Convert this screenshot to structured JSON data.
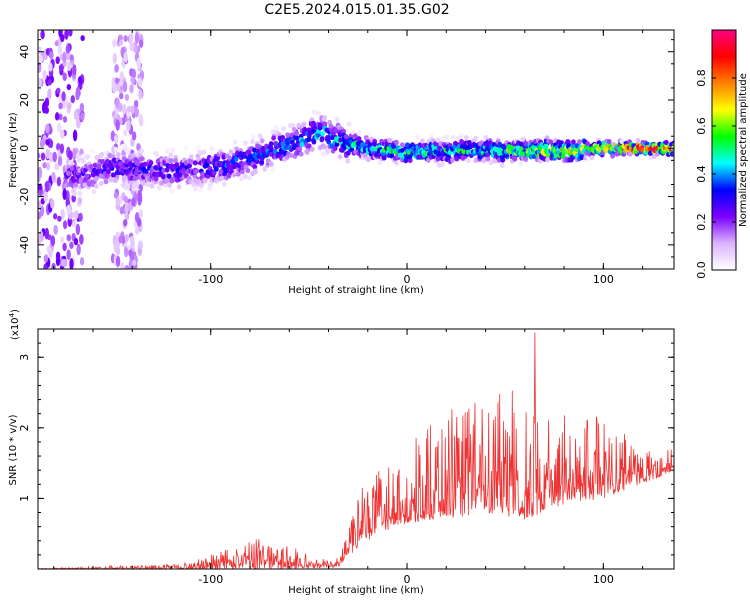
{
  "title": "C2E5.2024.015.01.35.G02",
  "chart_data": [
    {
      "type": "heatmap",
      "xlabel": "Height of straight line (km)",
      "ylabel": "Frequency (Hz)",
      "xlim": [
        -188,
        136
      ],
      "ylim": [
        -50,
        49
      ],
      "xticks": [
        -100,
        0,
        100
      ],
      "yticks": [
        -40,
        -20,
        0,
        20,
        40
      ],
      "colorbar": {
        "label": "Normalized spectral amplitude",
        "range": [
          0,
          1
        ],
        "ticks": [
          "0.0",
          "0.2",
          "0.4",
          "0.6",
          "0.8"
        ],
        "colors": [
          "#ffffff",
          "#dcb4ff",
          "#7b00ff",
          "#0000ff",
          "#00ffff",
          "#00ff00",
          "#ffff00",
          "#ff8000",
          "#ff0000",
          "#ff0080"
        ]
      },
      "ridge": {
        "x": [
          -170,
          -150,
          -130,
          -110,
          -100,
          -80,
          -60,
          -45,
          -35,
          -20,
          0,
          20,
          40,
          60,
          80,
          100,
          120,
          136
        ],
        "y": [
          -12,
          -8,
          -9,
          -9,
          -8,
          -4,
          2,
          7,
          3,
          0,
          -2,
          -1,
          -1,
          -1,
          -1,
          0,
          0,
          0
        ],
        "peak_amplitude": [
          0.25,
          0.3,
          0.3,
          0.3,
          0.35,
          0.35,
          0.4,
          0.45,
          0.45,
          0.5,
          0.55,
          0.5,
          0.55,
          0.6,
          0.7,
          0.8,
          0.95,
          0.95
        ]
      },
      "noise_bands": [
        {
          "x_from": -188,
          "x_to": -165
        },
        {
          "x_from": -150,
          "x_to": -135
        }
      ]
    },
    {
      "type": "line",
      "xlabel": "Height of straight line (km)",
      "ylabel": "SNR (10 * v/v)",
      "y_multiplier": "(x10",
      "y_multiplier_exponent": "4",
      "y_multiplier_close": ")",
      "xlim": [
        -188,
        136
      ],
      "ylim": [
        0,
        3.4
      ],
      "xticks": [
        -100,
        0,
        100
      ],
      "yticks": [
        1,
        2,
        3
      ],
      "color": "#ee3333",
      "envelope": {
        "x": [
          -188,
          -160,
          -130,
          -110,
          -90,
          -75,
          -60,
          -45,
          -35,
          -30,
          -25,
          -20,
          -10,
          0,
          10,
          20,
          30,
          40,
          50,
          60,
          70,
          80,
          90,
          100,
          110,
          120,
          136
        ],
        "y": [
          0.01,
          0.04,
          0.06,
          0.1,
          0.3,
          0.45,
          0.35,
          0.12,
          0.25,
          0.6,
          1.1,
          1.3,
          1.5,
          1.8,
          2.0,
          2.2,
          2.4,
          2.5,
          2.5,
          2.6,
          2.4,
          2.3,
          2.2,
          2.1,
          2.0,
          1.8,
          1.7
        ]
      },
      "baseline": {
        "x": [
          -188,
          -60,
          -35,
          -25,
          -15,
          0,
          20,
          40,
          60,
          80,
          100,
          120,
          136
        ],
        "y": [
          0.0,
          0.0,
          0.03,
          0.3,
          0.5,
          0.65,
          0.7,
          0.8,
          0.7,
          0.9,
          1.0,
          1.2,
          1.4
        ]
      },
      "peak": {
        "x": 65,
        "y": 3.35
      }
    }
  ]
}
